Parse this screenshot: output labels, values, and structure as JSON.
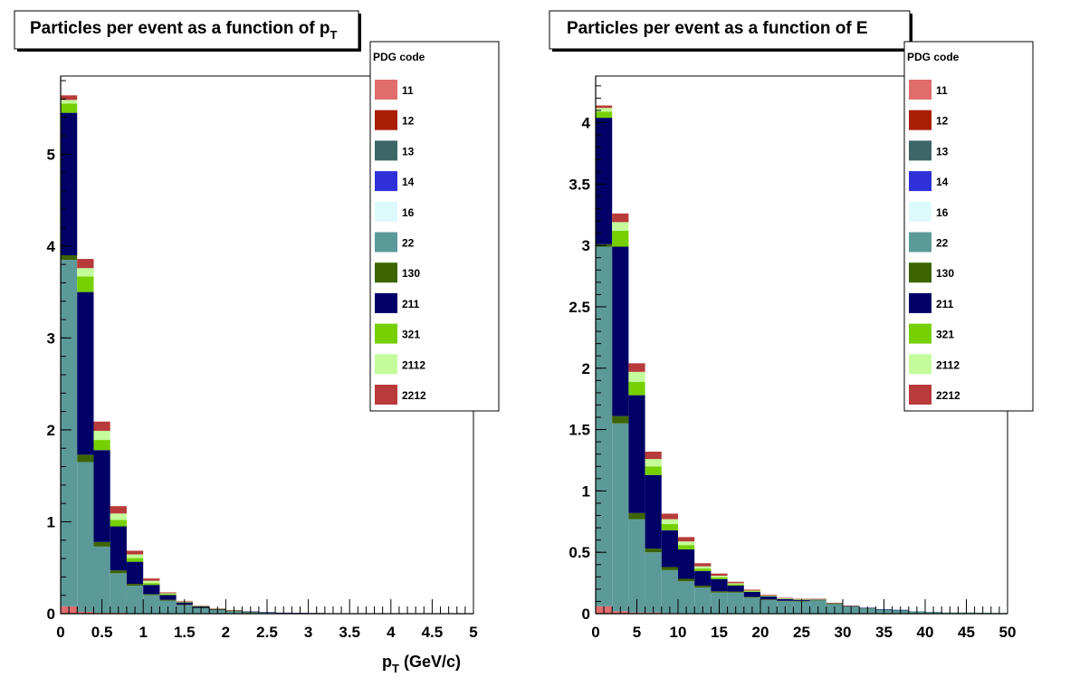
{
  "chart_data": [
    {
      "type": "bar",
      "stacked": true,
      "title": "Particles per event as a function of p",
      "title_subscript": "T",
      "xlabel": "p",
      "xlabel_subscript": "T",
      "xlabel_unit": " (GeV/c)",
      "ylabel": "",
      "xlim": [
        0,
        5
      ],
      "ylim": [
        0,
        5.85
      ],
      "bin_width": 0.2,
      "x_ticks": [
        "0",
        "0.5",
        "1",
        "1.5",
        "2",
        "2.5",
        "3",
        "3.5",
        "4",
        "4.5",
        "5"
      ],
      "x_tick_values": [
        0,
        0.5,
        1,
        1.5,
        2,
        2.5,
        3,
        3.5,
        4,
        4.5,
        5
      ],
      "y_ticks": [
        "0",
        "1",
        "2",
        "3",
        "4",
        "5"
      ],
      "y_tick_values": [
        0,
        1,
        2,
        3,
        4,
        5
      ],
      "legend_title": "PDG code",
      "legend_position": "top-right",
      "bin_centers": [
        0.1,
        0.3,
        0.5,
        0.7,
        0.9,
        1.1,
        1.3,
        1.5,
        1.7,
        1.9,
        2.1,
        2.3,
        2.5,
        2.7,
        2.9,
        3.1,
        3.3,
        3.5,
        3.7,
        3.9,
        4.1,
        4.3,
        4.5,
        4.7,
        4.9
      ],
      "series": [
        {
          "name": "11",
          "color": "#e06c6c",
          "values": [
            0.08,
            0.02,
            0.01,
            0.01,
            0.005,
            0.003,
            0.002,
            0.002,
            0.001,
            0.001,
            0.001,
            0,
            0,
            0,
            0,
            0,
            0,
            0,
            0,
            0,
            0,
            0,
            0,
            0,
            0
          ]
        },
        {
          "name": "12",
          "color": "#a81d04",
          "values": [
            0,
            0,
            0,
            0,
            0,
            0,
            0,
            0,
            0,
            0,
            0,
            0,
            0,
            0,
            0,
            0,
            0,
            0,
            0,
            0,
            0,
            0,
            0,
            0,
            0
          ]
        },
        {
          "name": "13",
          "color": "#3d6666",
          "values": [
            0,
            0,
            0,
            0,
            0,
            0,
            0,
            0,
            0,
            0,
            0,
            0,
            0,
            0,
            0,
            0,
            0,
            0,
            0,
            0,
            0,
            0,
            0,
            0,
            0
          ]
        },
        {
          "name": "14",
          "color": "#3030d8",
          "values": [
            0,
            0,
            0,
            0,
            0,
            0,
            0,
            0,
            0,
            0,
            0,
            0,
            0,
            0,
            0,
            0,
            0,
            0,
            0,
            0,
            0,
            0,
            0,
            0,
            0
          ]
        },
        {
          "name": "16",
          "color": "#dcfafc",
          "values": [
            0,
            0,
            0,
            0,
            0,
            0,
            0,
            0,
            0,
            0,
            0,
            0,
            0,
            0,
            0,
            0,
            0,
            0,
            0,
            0,
            0,
            0,
            0,
            0,
            0
          ]
        },
        {
          "name": "22",
          "color": "#5c9a9a",
          "values": [
            3.77,
            1.63,
            0.72,
            0.43,
            0.3,
            0.2,
            0.14,
            0.09,
            0.06,
            0.04,
            0.03,
            0.02,
            0.015,
            0.01,
            0.008,
            0.006,
            0.005,
            0.004,
            0.003,
            0.002,
            0.002,
            0.001,
            0.001,
            0.001,
            0.001
          ]
        },
        {
          "name": "130",
          "color": "#3c6400",
          "values": [
            0.05,
            0.08,
            0.05,
            0.03,
            0.02,
            0.01,
            0.01,
            0.005,
            0.003,
            0.002,
            0.001,
            0.001,
            0,
            0,
            0,
            0,
            0,
            0,
            0,
            0,
            0,
            0,
            0,
            0,
            0
          ]
        },
        {
          "name": "211",
          "color": "#000066",
          "values": [
            1.55,
            1.77,
            1.0,
            0.48,
            0.24,
            0.1,
            0.05,
            0.025,
            0.015,
            0.008,
            0.005,
            0.003,
            0.002,
            0.001,
            0.001,
            0.001,
            0,
            0,
            0,
            0,
            0,
            0,
            0,
            0,
            0
          ]
        },
        {
          "name": "321",
          "color": "#76d000",
          "values": [
            0.1,
            0.17,
            0.11,
            0.07,
            0.04,
            0.02,
            0.01,
            0.005,
            0.003,
            0.002,
            0.001,
            0,
            0,
            0,
            0,
            0,
            0,
            0,
            0,
            0,
            0,
            0,
            0,
            0,
            0
          ]
        },
        {
          "name": "2112",
          "color": "#c4fc9c",
          "values": [
            0.04,
            0.09,
            0.1,
            0.07,
            0.04,
            0.025,
            0.01,
            0.006,
            0.004,
            0.002,
            0.001,
            0,
            0,
            0,
            0,
            0,
            0,
            0,
            0,
            0,
            0,
            0,
            0,
            0,
            0
          ]
        },
        {
          "name": "2212",
          "color": "#b83a3a",
          "values": [
            0.05,
            0.1,
            0.1,
            0.08,
            0.04,
            0.025,
            0.01,
            0.006,
            0.004,
            0.002,
            0.001,
            0,
            0,
            0,
            0,
            0,
            0,
            0,
            0,
            0,
            0,
            0,
            0,
            0,
            0
          ]
        }
      ]
    },
    {
      "type": "bar",
      "stacked": true,
      "title": "Particles per event as a function of E",
      "title_subscript": "",
      "xlabel": "",
      "xlabel_subscript": "",
      "xlabel_unit": "",
      "ylabel": "",
      "xlim": [
        0,
        50
      ],
      "ylim": [
        0,
        4.38
      ],
      "bin_width": 2,
      "x_ticks": [
        "0",
        "5",
        "10",
        "15",
        "20",
        "25",
        "30",
        "35",
        "40",
        "45",
        "50"
      ],
      "x_tick_values": [
        0,
        5,
        10,
        15,
        20,
        25,
        30,
        35,
        40,
        45,
        50
      ],
      "y_ticks": [
        "0",
        "0.5",
        "1",
        "1.5",
        "2",
        "2.5",
        "3",
        "3.5",
        "4"
      ],
      "y_tick_values": [
        0,
        0.5,
        1,
        1.5,
        2,
        2.5,
        3,
        3.5,
        4
      ],
      "legend_title": "PDG code",
      "legend_position": "top-right",
      "bin_centers": [
        1,
        3,
        5,
        7,
        9,
        11,
        13,
        15,
        17,
        19,
        21,
        23,
        25,
        27,
        29,
        31,
        33,
        35,
        37,
        39,
        41,
        43,
        45,
        47,
        49
      ],
      "series": [
        {
          "name": "11",
          "color": "#e06c6c",
          "values": [
            0.06,
            0.02,
            0.01,
            0.01,
            0.005,
            0.004,
            0.003,
            0.002,
            0.002,
            0.001,
            0.001,
            0.001,
            0.001,
            0,
            0,
            0,
            0,
            0,
            0,
            0,
            0,
            0,
            0,
            0,
            0
          ]
        },
        {
          "name": "12",
          "color": "#a81d04",
          "values": [
            0,
            0,
            0,
            0,
            0,
            0,
            0,
            0,
            0,
            0,
            0,
            0,
            0,
            0,
            0,
            0,
            0,
            0,
            0,
            0,
            0,
            0,
            0,
            0,
            0
          ]
        },
        {
          "name": "13",
          "color": "#3d6666",
          "values": [
            0,
            0,
            0,
            0,
            0,
            0,
            0,
            0,
            0,
            0,
            0,
            0,
            0,
            0,
            0,
            0,
            0,
            0,
            0,
            0,
            0,
            0,
            0,
            0,
            0
          ]
        },
        {
          "name": "14",
          "color": "#3030d8",
          "values": [
            0,
            0,
            0,
            0,
            0,
            0,
            0,
            0,
            0,
            0,
            0,
            0,
            0,
            0,
            0,
            0,
            0,
            0,
            0,
            0,
            0,
            0,
            0,
            0,
            0
          ]
        },
        {
          "name": "16",
          "color": "#dcfafc",
          "values": [
            0,
            0,
            0,
            0,
            0,
            0,
            0,
            0,
            0,
            0,
            0,
            0,
            0,
            0,
            0,
            0,
            0,
            0,
            0,
            0,
            0,
            0,
            0,
            0,
            0
          ]
        },
        {
          "name": "22",
          "color": "#5c9a9a",
          "values": [
            2.93,
            1.53,
            0.76,
            0.49,
            0.35,
            0.26,
            0.21,
            0.17,
            0.17,
            0.13,
            0.11,
            0.1,
            0.1,
            0.11,
            0.08,
            0.06,
            0.045,
            0.035,
            0.03,
            0.02,
            0.015,
            0.01,
            0.01,
            0.008,
            0.006
          ]
        },
        {
          "name": "130",
          "color": "#3c6400",
          "values": [
            0.02,
            0.06,
            0.05,
            0.03,
            0.025,
            0.02,
            0.015,
            0.01,
            0.008,
            0.006,
            0.005,
            0.004,
            0.003,
            0.002,
            0.002,
            0.001,
            0.001,
            0,
            0,
            0,
            0,
            0,
            0,
            0,
            0
          ]
        },
        {
          "name": "211",
          "color": "#000066",
          "values": [
            1.03,
            1.38,
            0.96,
            0.6,
            0.3,
            0.24,
            0.12,
            0.1,
            0.05,
            0.04,
            0.025,
            0.015,
            0.01,
            0.005,
            0.004,
            0.003,
            0.002,
            0.001,
            0.001,
            0,
            0,
            0,
            0,
            0,
            0
          ]
        },
        {
          "name": "321",
          "color": "#76d000",
          "values": [
            0.05,
            0.13,
            0.11,
            0.07,
            0.05,
            0.035,
            0.02,
            0.015,
            0.01,
            0.006,
            0.004,
            0.003,
            0.002,
            0.001,
            0.001,
            0,
            0,
            0,
            0,
            0,
            0,
            0,
            0,
            0,
            0
          ]
        },
        {
          "name": "2112",
          "color": "#c4fc9c",
          "values": [
            0.03,
            0.07,
            0.08,
            0.06,
            0.04,
            0.03,
            0.018,
            0.012,
            0.008,
            0.005,
            0.003,
            0.002,
            0.002,
            0.001,
            0.001,
            0,
            0,
            0,
            0,
            0,
            0,
            0,
            0,
            0,
            0
          ]
        },
        {
          "name": "2212",
          "color": "#b83a3a",
          "values": [
            0.02,
            0.07,
            0.07,
            0.06,
            0.045,
            0.035,
            0.025,
            0.018,
            0.012,
            0.008,
            0.006,
            0.004,
            0.003,
            0.002,
            0.001,
            0.001,
            0,
            0,
            0,
            0,
            0,
            0,
            0,
            0,
            0
          ]
        }
      ]
    }
  ]
}
